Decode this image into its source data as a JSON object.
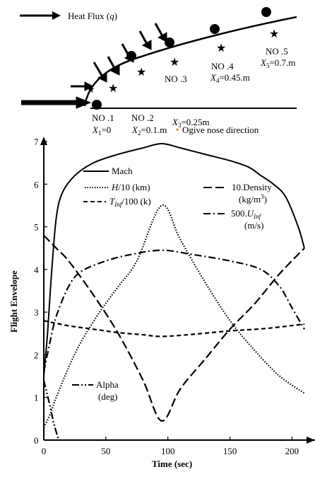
{
  "diagram": {
    "heat_flux_label": "Heat Flux (q)",
    "stations": [
      {
        "no": "NO .1",
        "x": "X1=0"
      },
      {
        "no": "NO .2",
        "x": "X2=0.1.m"
      },
      {
        "no": "NO .3",
        "x": "X3=0.25m"
      },
      {
        "no": "NO .4",
        "x": "X4=0.45.m"
      },
      {
        "no": "NO .5",
        "x": "X5=0.7.m"
      }
    ],
    "direction_label": "Ogive nose direction"
  },
  "chart_data": {
    "type": "line",
    "xlabel": "Time (sec)",
    "ylabel": "Flight Envelope",
    "xlim": [
      0,
      210
    ],
    "ylim": [
      0,
      7
    ],
    "xticks": [
      0,
      50,
      100,
      150,
      200
    ],
    "yticks": [
      0,
      1,
      2,
      3,
      4,
      5,
      6,
      7
    ],
    "grid": false,
    "series": [
      {
        "name": "Mach",
        "style": "solid",
        "x": [
          0,
          3,
          6,
          10,
          15,
          25,
          40,
          60,
          80,
          95,
          110,
          130,
          150,
          165,
          175,
          185,
          195,
          205,
          210
        ],
        "y": [
          1.5,
          2.5,
          3.8,
          5.2,
          5.8,
          6.2,
          6.5,
          6.7,
          6.85,
          6.95,
          6.85,
          6.7,
          6.55,
          6.4,
          6.2,
          6.0,
          5.7,
          5.0,
          4.5
        ]
      },
      {
        "name": "H/10 (km)",
        "style": "dotted",
        "x": [
          0,
          5,
          10,
          20,
          30,
          45,
          60,
          75,
          95,
          110,
          130,
          150,
          170,
          190,
          210
        ],
        "y": [
          0.3,
          0.6,
          1.0,
          1.7,
          2.3,
          3.0,
          3.6,
          4.2,
          5.5,
          4.7,
          3.7,
          2.8,
          2.1,
          1.5,
          1.1
        ]
      },
      {
        "name": "10.Density (kg/m3)",
        "style": "dashed",
        "x": [
          0,
          10,
          20,
          40,
          60,
          80,
          95,
          110,
          130,
          150,
          170,
          190,
          210
        ],
        "y": [
          4.8,
          4.5,
          4.2,
          3.4,
          2.5,
          1.4,
          0.45,
          1.2,
          1.9,
          2.6,
          3.2,
          3.9,
          4.5
        ]
      },
      {
        "name": "Tinf/100 (k)",
        "style": "dash",
        "x": [
          0,
          20,
          40,
          60,
          80,
          95,
          120,
          150,
          180,
          210
        ],
        "y": [
          2.8,
          2.68,
          2.6,
          2.52,
          2.47,
          2.43,
          2.48,
          2.56,
          2.62,
          2.72
        ]
      },
      {
        "name": "500.Uinf (m/s)",
        "style": "dashdot",
        "x": [
          0,
          5,
          10,
          20,
          30,
          50,
          70,
          95,
          120,
          150,
          175,
          190,
          200,
          210
        ],
        "y": [
          1.6,
          2.3,
          2.9,
          3.6,
          3.95,
          4.2,
          4.35,
          4.45,
          4.35,
          4.2,
          4.0,
          3.6,
          3.1,
          2.6
        ]
      },
      {
        "name": "Alpha (deg)",
        "style": "dashdotdot",
        "x": [
          0,
          5,
          8,
          12
        ],
        "y": [
          1.4,
          0.8,
          0.4,
          0.0
        ]
      }
    ],
    "legend": {
      "mach": "Mach",
      "h": "H/10 (km)",
      "tinf": "Tinf/100 (k)",
      "density": "10.Density",
      "density_unit": "(kg/m3)",
      "u": "500.Uinf",
      "u_unit": "(m/s)",
      "alpha": "Alpha",
      "alpha_unit": "(deg)"
    }
  }
}
